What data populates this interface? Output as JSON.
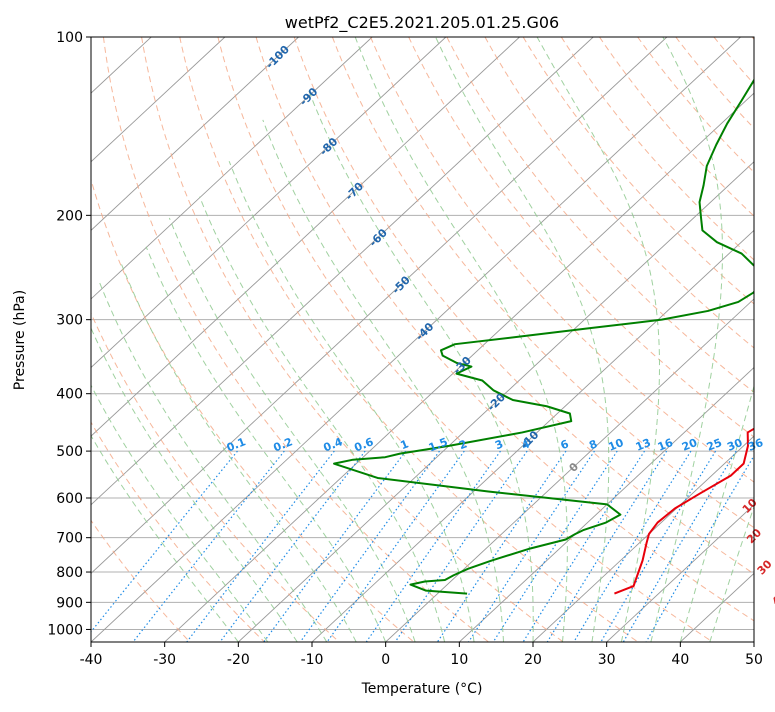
{
  "chart_data": {
    "type": "line",
    "subtype": "skew-t log-p diagram",
    "title": "wetPf2_C2E5.2021.205.01.25.G06",
    "xlabel": "Temperature (°C)",
    "ylabel": "Pressure (hPa)",
    "xlim": [
      -40,
      50
    ],
    "ylim": [
      1050,
      100
    ],
    "y_scale": "log",
    "grid": true,
    "x_ticks": [
      "-40",
      "-30",
      "-20",
      "-10",
      "0",
      "10",
      "20",
      "30",
      "40",
      "50"
    ],
    "x_tick_values": [
      -40,
      -30,
      -20,
      -10,
      0,
      10,
      20,
      30,
      40,
      50
    ],
    "y_ticks": [
      "100",
      "200",
      "300",
      "400",
      "500",
      "600",
      "700",
      "800",
      "900",
      "1000"
    ],
    "y_tick_values": [
      100,
      200,
      300,
      400,
      500,
      600,
      700,
      800,
      900,
      1000
    ],
    "colors": {
      "temperature": "#e8000b",
      "dewpoint": "#008000",
      "isotherm": "#999999",
      "dry_adiabat": "#f4a582",
      "moist_adiabat": "#8fc98f",
      "mixing_ratio": "#1f8ce6",
      "isotherm_label": "#2166ac",
      "dry_label": "#d62728",
      "zero_label": "#888888"
    },
    "series": [
      {
        "name": "Temperature",
        "points": [
          [
            24.0,
            870
          ],
          [
            25.5,
            845
          ],
          [
            23.0,
            765
          ],
          [
            21.0,
            715
          ],
          [
            20.0,
            690
          ],
          [
            19.5,
            660
          ],
          [
            19.8,
            625
          ],
          [
            21.0,
            590
          ],
          [
            22.6,
            550
          ],
          [
            22.6,
            525
          ],
          [
            20.6,
            490
          ],
          [
            18.6,
            465
          ],
          [
            19.6,
            445
          ],
          [
            19.6,
            420
          ],
          [
            18.2,
            395
          ],
          [
            15.4,
            370
          ],
          [
            12.2,
            340
          ],
          [
            8.8,
            310
          ],
          [
            5.9,
            285
          ],
          [
            3.9,
            265
          ],
          [
            1.6,
            245
          ],
          [
            -0.5,
            222
          ],
          [
            -2.3,
            198
          ],
          [
            -3.6,
            178
          ],
          [
            -3.8,
            163
          ],
          [
            -4.0,
            148
          ],
          [
            -5.2,
            135
          ],
          [
            -6.4,
            125
          ],
          [
            -7.0,
            115
          ],
          [
            -7.7,
            107
          ],
          [
            -8.0,
            100
          ]
        ]
      },
      {
        "name": "Dewpoint",
        "points": [
          [
            4.0,
            870
          ],
          [
            -2.0,
            860
          ],
          [
            -5.0,
            840
          ],
          [
            -3.5,
            830
          ],
          [
            -1.0,
            825
          ],
          [
            -0.5,
            810
          ],
          [
            0.5,
            790
          ],
          [
            2.5,
            765
          ],
          [
            6.0,
            730
          ],
          [
            9.5,
            705
          ],
          [
            10.0,
            690
          ],
          [
            10.5,
            680
          ],
          [
            12.5,
            660
          ],
          [
            13.3,
            640
          ],
          [
            10.0,
            615
          ],
          [
            -8.0,
            585
          ],
          [
            -25.0,
            555
          ],
          [
            -33.0,
            525
          ],
          [
            -31.0,
            517
          ],
          [
            -27.0,
            512
          ],
          [
            -25.5,
            505
          ],
          [
            -20.0,
            490
          ],
          [
            -12.0,
            465
          ],
          [
            -7.0,
            445
          ],
          [
            -8.3,
            432
          ],
          [
            -12.5,
            420
          ],
          [
            -18.0,
            410
          ],
          [
            -22.0,
            395
          ],
          [
            -25.0,
            380
          ],
          [
            -29.5,
            370
          ],
          [
            -28.5,
            360
          ],
          [
            -31.0,
            355
          ],
          [
            -34.0,
            345
          ],
          [
            -35.0,
            338
          ],
          [
            -34.0,
            330
          ],
          [
            -26.0,
            320
          ],
          [
            -18.0,
            310
          ],
          [
            -9.5,
            300
          ],
          [
            -4.5,
            290
          ],
          [
            -1.7,
            280
          ],
          [
            -1.0,
            270
          ],
          [
            -1.5,
            258
          ],
          [
            -4.3,
            245
          ],
          [
            -8.3,
            232
          ],
          [
            -13.3,
            222
          ],
          [
            -17.0,
            212
          ],
          [
            -19.0,
            202
          ],
          [
            -21.5,
            190
          ],
          [
            -23.4,
            178
          ],
          [
            -25.8,
            165
          ],
          [
            -27.6,
            152
          ],
          [
            -29.2,
            140
          ],
          [
            -30.6,
            128
          ],
          [
            -32.2,
            116
          ],
          [
            -33.7,
            107
          ],
          [
            -35.0,
            100
          ]
        ]
      }
    ],
    "isotherm_labels": [
      {
        "text": "-100",
        "T": -100,
        "p": 108
      },
      {
        "text": "-90",
        "T": -90,
        "p": 126
      },
      {
        "text": "-80",
        "T": -80,
        "p": 153
      },
      {
        "text": "-70",
        "T": -70,
        "p": 182
      },
      {
        "text": "-60",
        "T": -60,
        "p": 218
      },
      {
        "text": "-50",
        "T": -50,
        "p": 262
      },
      {
        "text": "-40",
        "T": -40,
        "p": 314
      },
      {
        "text": "-30",
        "T": -30,
        "p": 358
      },
      {
        "text": "-20",
        "T": -20,
        "p": 413
      },
      {
        "text": "-10",
        "T": -10,
        "p": 478
      },
      {
        "text": "0",
        "T": 0,
        "p": 532
      }
    ],
    "dry_adiabat_labels": [
      {
        "text": "10",
        "T": 29.5,
        "p": 618
      },
      {
        "text": "20",
        "T": 34.5,
        "p": 695
      },
      {
        "text": "30",
        "T": 40.5,
        "p": 785
      },
      {
        "text": "40",
        "T": 47.0,
        "p": 885
      }
    ],
    "mixing_ratio_labels": [
      "0.1",
      "0.2",
      "0.4",
      "0.6",
      "1",
      "1.5",
      "2",
      "3",
      "4",
      "6",
      "8",
      "10",
      "13",
      "16",
      "20",
      "25",
      "30",
      "36"
    ],
    "mixing_ratio_values": [
      0.1,
      0.2,
      0.4,
      0.6,
      1,
      1.5,
      2,
      3,
      4,
      6,
      8,
      10,
      13,
      16,
      20,
      25,
      30,
      36
    ],
    "mixing_ratio_label_pressure": 500
  }
}
